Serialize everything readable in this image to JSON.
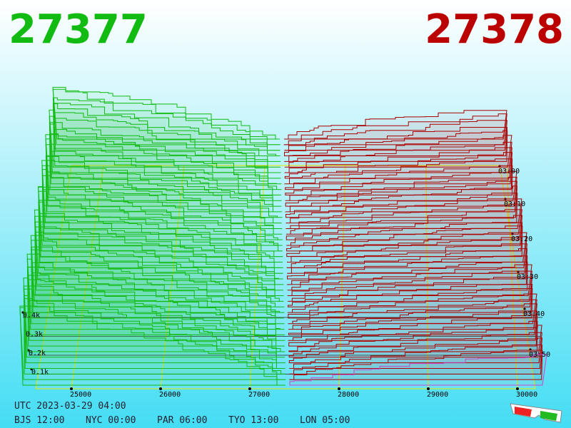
{
  "header": {
    "bid": "27377",
    "ask": "27378"
  },
  "axis": {
    "price_labels": [
      "25000",
      "26000",
      "27000",
      "28000",
      "29000",
      "30000"
    ],
    "depth_labels": [
      "0.4k",
      "0.3k",
      "0.2k",
      "0.1k"
    ],
    "time_labels": [
      "03:00",
      "03:10",
      "03:20",
      "03:30",
      "03:40",
      "03:50"
    ]
  },
  "footer": {
    "utc": "UTC 2023-03-29 04:00",
    "cities": [
      "BJS 12:00",
      "NYC 00:00",
      "PAR 06:00",
      "TYO 13:00",
      "LON 05:00"
    ]
  }
}
